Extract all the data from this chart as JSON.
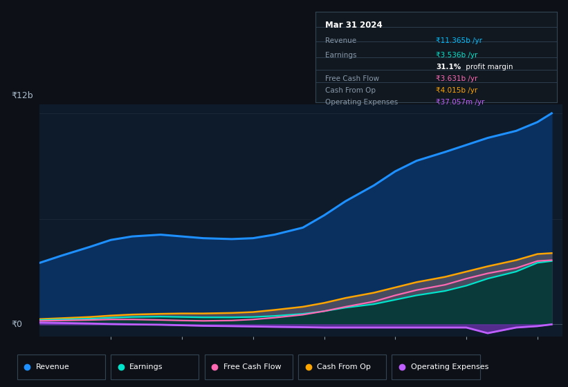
{
  "background_color": "#0d1117",
  "plot_bg_color": "#0d1b2a",
  "title_label": "Mar 31 2024",
  "table_data": {
    "Revenue": {
      "value": "₹11.365b /yr",
      "color": "#00bfff"
    },
    "Earnings": {
      "value": "₹3.536b /yr",
      "color": "#00e5cc"
    },
    "profit_margin": "31.1% profit margin",
    "Free Cash Flow": {
      "value": "₹3.631b /yr",
      "color": "#ff69b4"
    },
    "Cash From Op": {
      "value": "₹4.015b /yr",
      "color": "#ffa500"
    },
    "Operating Expenses": {
      "value": "₹37.057m /yr",
      "color": "#bf5fff"
    }
  },
  "ylabel_top": "₹12b",
  "ylabel_bottom": "₹0",
  "years": [
    2017.0,
    2017.3,
    2017.7,
    2018.0,
    2018.3,
    2018.7,
    2019.0,
    2019.3,
    2019.7,
    2020.0,
    2020.3,
    2020.7,
    2021.0,
    2021.3,
    2021.7,
    2022.0,
    2022.3,
    2022.7,
    2023.0,
    2023.3,
    2023.7,
    2024.0,
    2024.2
  ],
  "revenue": [
    3.5,
    3.9,
    4.4,
    4.8,
    5.0,
    5.1,
    5.0,
    4.9,
    4.85,
    4.9,
    5.1,
    5.5,
    6.2,
    7.0,
    7.9,
    8.7,
    9.3,
    9.8,
    10.2,
    10.6,
    11.0,
    11.5,
    12.0
  ],
  "earnings": [
    0.25,
    0.28,
    0.32,
    0.38,
    0.42,
    0.44,
    0.42,
    0.4,
    0.4,
    0.42,
    0.48,
    0.6,
    0.75,
    0.95,
    1.15,
    1.4,
    1.65,
    1.9,
    2.2,
    2.6,
    3.0,
    3.5,
    3.6
  ],
  "free_cash_flow": [
    0.2,
    0.22,
    0.25,
    0.28,
    0.28,
    0.25,
    0.22,
    0.2,
    0.22,
    0.28,
    0.38,
    0.55,
    0.75,
    1.0,
    1.3,
    1.65,
    1.95,
    2.25,
    2.6,
    2.9,
    3.2,
    3.6,
    3.65
  ],
  "cash_from_op": [
    0.3,
    0.35,
    0.42,
    0.5,
    0.56,
    0.6,
    0.62,
    0.62,
    0.65,
    0.7,
    0.82,
    1.0,
    1.22,
    1.5,
    1.8,
    2.1,
    2.4,
    2.7,
    3.0,
    3.3,
    3.65,
    4.0,
    4.05
  ],
  "op_expenses": [
    0.1,
    0.08,
    0.05,
    0.02,
    0.0,
    -0.02,
    -0.05,
    -0.08,
    -0.1,
    -0.12,
    -0.14,
    -0.16,
    -0.18,
    -0.18,
    -0.18,
    -0.18,
    -0.18,
    -0.18,
    -0.18,
    -0.5,
    -0.18,
    -0.1,
    0.0
  ],
  "revenue_color": "#1e90ff",
  "earnings_color": "#00e5cc",
  "fcf_color": "#ff69b4",
  "cfop_color": "#ffa500",
  "opex_color": "#bf5fff",
  "revenue_fill": "#0a3060",
  "earnings_fill": "#0a3a3a",
  "opex_fill_color": "#505060",
  "ylim": [
    -0.7,
    12.5
  ],
  "xlim": [
    2017.0,
    2024.35
  ],
  "grid_color": "#2a3a4a",
  "zero_line_y": 0.0
}
